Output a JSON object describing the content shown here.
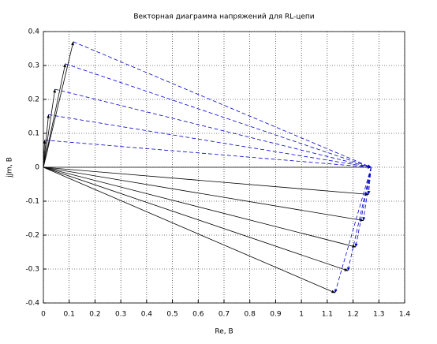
{
  "chart_data": {
    "type": "vector",
    "title": "Векторная диаграмма напряжений для RL-цепи",
    "xlabel": "Re, B",
    "ylabel": "jJm, B",
    "xlim": [
      0,
      1.4
    ],
    "ylim": [
      -0.4,
      0.4
    ],
    "xticks": [
      0,
      0.1,
      0.2,
      0.3,
      0.4,
      0.5,
      0.6,
      0.7,
      0.8,
      0.9,
      1,
      1.1,
      1.2,
      1.3,
      1.4
    ],
    "yticks": [
      -0.4,
      -0.3,
      -0.2,
      -0.1,
      0,
      0.1,
      0.2,
      0.3,
      0.4
    ],
    "grid": true,
    "total": {
      "x": 1.27,
      "y": 0
    },
    "solid_color": "#000000",
    "dashed_color": "#0000cc",
    "vectors": {
      "x": [
        1.26,
        1.24,
        1.21,
        1.18,
        1.13,
        0.005,
        0.02,
        0.045,
        0.085,
        0.116
      ],
      "y": [
        -0.08,
        -0.157,
        -0.235,
        -0.305,
        -0.37,
        0.08,
        0.155,
        0.23,
        0.305,
        0.37
      ]
    }
  }
}
